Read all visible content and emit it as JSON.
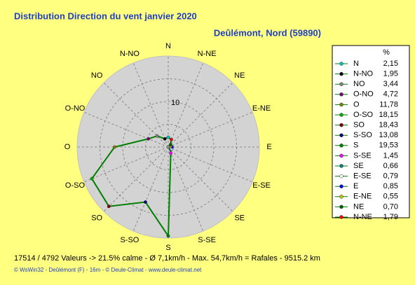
{
  "chart_data": {
    "type": "radar",
    "title": "Distribution Direction du vent   janvier 2020",
    "subtitle": "Deûlémont, Nord (59890)",
    "legend_header": "%",
    "categories": [
      "N",
      "N-NO",
      "NO",
      "O-NO",
      "O",
      "O-SO",
      "SO",
      "S-SO",
      "S",
      "S-SE",
      "SE",
      "E-SE",
      "E",
      "E-NE",
      "NE",
      "N-NE"
    ],
    "values": [
      2.15,
      1.95,
      3.44,
      4.72,
      11.78,
      18.15,
      18.43,
      13.08,
      19.53,
      1.45,
      0.66,
      0.79,
      0.85,
      0.55,
      0.7,
      1.79
    ],
    "value_labels": [
      "2,15",
      "1,95",
      "3,44",
      "4,72",
      "11,78",
      "18,15",
      "18,43",
      "13,08",
      "19,53",
      "1,45",
      "0,66",
      "0,79",
      "0,85",
      "0,55",
      "0,70",
      "1,79"
    ],
    "colors": [
      "#00c0c0",
      "#000000",
      "#808080",
      "#800080",
      "#808000",
      "#00b000",
      "#800000",
      "#000080",
      "#008000",
      "#ff00ff",
      "#008080",
      "#ffffff",
      "#0000ff",
      "#c0c000",
      "#006000",
      "#ff0000"
    ],
    "color": "#008000",
    "rlim": [
      0,
      20
    ],
    "rticks": [
      10
    ],
    "rgrid": [
      5,
      15
    ],
    "footer": "17514 / 4792 Valeurs  -> 21.5% calme   -   Ø 7,1km/h   -   Max. 54,7km/h = Rafales   -   9515.2 km",
    "credits": "© WsWin32  -  Deûlémont (F) - 16m  -  © Deule-Climat - www.deule-climat.net"
  }
}
